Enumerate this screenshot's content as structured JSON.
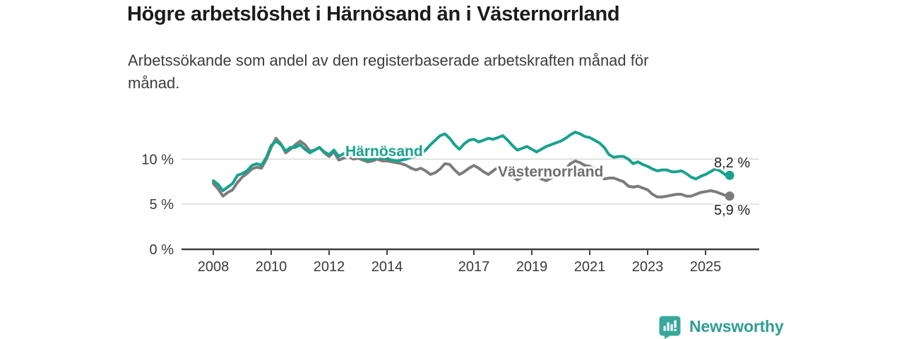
{
  "header": {
    "title": "Högre arbetslöshet i Härnösand än i Västernorrland",
    "subtitle": "Arbetssökande som andel av den registerbaserade arbetskraften månad för\nmånad."
  },
  "chart_data": {
    "type": "line",
    "unit": "%",
    "x_start_year": 2008,
    "x_interval_months": 2,
    "xlim": [
      2006.9,
      2026.3
    ],
    "ylim": [
      0,
      14.3
    ],
    "grid": "horizontal",
    "legend_position": "inline-on-lines",
    "yticks": [
      {
        "value": 0,
        "label": "0 %"
      },
      {
        "value": 5,
        "label": "5 %"
      },
      {
        "value": 10,
        "label": "10 %"
      }
    ],
    "xticks": [
      {
        "value": 2008,
        "label": "2008"
      },
      {
        "value": 2010,
        "label": "2010"
      },
      {
        "value": 2012,
        "label": "2012"
      },
      {
        "value": 2014,
        "label": "2014"
      },
      {
        "value": 2017,
        "label": "2017"
      },
      {
        "value": 2019,
        "label": "2019"
      },
      {
        "value": 2021,
        "label": "2021"
      },
      {
        "value": 2023,
        "label": "2023"
      },
      {
        "value": 2025,
        "label": "2025"
      }
    ],
    "series": [
      {
        "name": "Västernorrland",
        "color": "#7c7c7c",
        "label_color": "#6e6e6e",
        "end_label": "5,9 %",
        "end_value": 5.9,
        "values": [
          7.3,
          6.7,
          5.9,
          6.3,
          6.6,
          7.4,
          8.0,
          8.4,
          8.9,
          9.1,
          9.0,
          10.0,
          11.3,
          12.3,
          11.7,
          10.7,
          11.1,
          11.6,
          12.0,
          11.6,
          10.9,
          11.0,
          11.3,
          10.7,
          10.3,
          10.8,
          9.9,
          10.1,
          10.3,
          10.0,
          10.1,
          9.9,
          9.7,
          9.8,
          10.0,
          9.8,
          9.8,
          9.7,
          9.6,
          9.5,
          9.3,
          9.0,
          8.8,
          9.0,
          8.7,
          8.3,
          8.5,
          8.9,
          9.5,
          9.4,
          8.8,
          8.3,
          8.6,
          9.0,
          9.3,
          9.0,
          8.6,
          8.3,
          8.7,
          9.1,
          9.0,
          8.7,
          8.1,
          7.7,
          8.0,
          8.4,
          8.5,
          8.2,
          7.8,
          7.6,
          7.9,
          8.3,
          8.5,
          8.9,
          9.5,
          9.8,
          9.6,
          9.3,
          9.2,
          8.9,
          8.3,
          7.8,
          7.9,
          7.9,
          7.7,
          7.5,
          7.0,
          6.9,
          7.0,
          6.8,
          6.6,
          6.1,
          5.8,
          5.8,
          5.9,
          6.0,
          6.1,
          6.1,
          5.9,
          5.9,
          6.1,
          6.3,
          6.4,
          6.5,
          6.4,
          6.2,
          6.0,
          5.9
        ]
      },
      {
        "name": "Härnösand",
        "color": "#18a28e",
        "label_color": "#18a28e",
        "end_label": "8,2 %",
        "end_value": 8.2,
        "values": [
          7.6,
          7.2,
          6.5,
          6.9,
          7.3,
          8.2,
          8.4,
          8.7,
          9.3,
          9.5,
          9.3,
          10.2,
          11.5,
          12.0,
          11.6,
          10.9,
          11.3,
          11.3,
          11.6,
          11.1,
          10.7,
          11.0,
          11.3,
          10.8,
          10.5,
          11.0,
          10.3,
          10.6,
          10.8,
          10.4,
          10.3,
          10.1,
          9.9,
          10.0,
          10.2,
          10.1,
          10.1,
          9.9,
          9.8,
          9.9,
          10.0,
          10.2,
          10.3,
          10.6,
          11.0,
          11.6,
          12.1,
          12.6,
          12.8,
          12.3,
          11.6,
          11.1,
          11.7,
          12.1,
          12.2,
          11.9,
          12.1,
          12.3,
          12.2,
          12.4,
          12.6,
          12.1,
          11.5,
          11.0,
          11.2,
          11.4,
          11.1,
          10.8,
          11.1,
          11.4,
          11.6,
          11.8,
          12.0,
          12.3,
          12.7,
          13.0,
          12.8,
          12.5,
          12.4,
          12.1,
          11.8,
          11.3,
          10.5,
          10.2,
          10.3,
          10.3,
          10.0,
          9.5,
          9.7,
          9.4,
          9.2,
          8.9,
          8.7,
          8.8,
          8.8,
          8.6,
          8.6,
          8.7,
          8.4,
          8.0,
          7.8,
          8.1,
          8.3,
          8.6,
          8.9,
          8.7,
          8.3,
          8.2
        ]
      }
    ]
  },
  "footer": {
    "brand": "Newsworthy"
  },
  "colors": {
    "accent_teal": "#18a28e",
    "series_gray": "#7c7c7c",
    "gridline": "#d9d9d9",
    "axis": "#3f3f3f",
    "title_text": "#1b1b1b",
    "logo_teal": "#3aa79b"
  }
}
